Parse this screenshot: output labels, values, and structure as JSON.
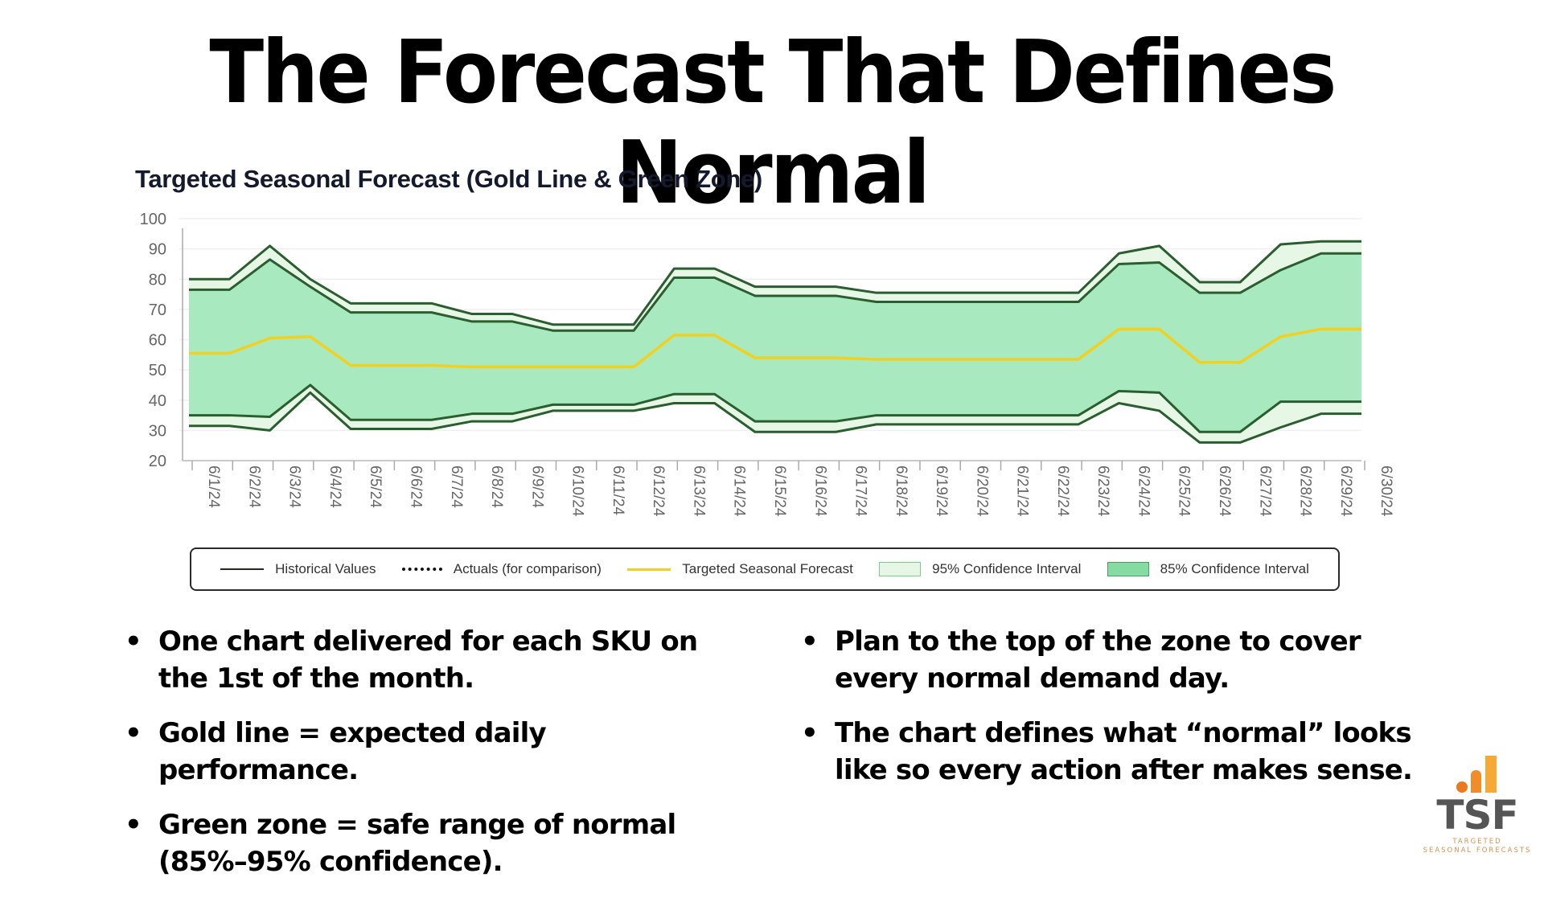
{
  "slide": {
    "title": "The Forecast That Defines Normal",
    "bullets_left": [
      "One chart delivered for each SKU on the 1st of the month.",
      "Gold line = expected daily performance.",
      "Green zone = safe range of normal (85%–95% confidence)."
    ],
    "bullets_right": [
      "Plan to the top of the zone to cover every normal demand day.",
      "The chart defines what “normal” looks like so every action after makes sense."
    ]
  },
  "logo": {
    "name": "TSF",
    "tagline_line1": "TARGETED",
    "tagline_line2": "SEASONAL FORECASTS",
    "colors": [
      "#ea7a22",
      "#f08c2a",
      "#f6a935"
    ]
  },
  "legend": {
    "items": [
      {
        "label": "Historical Values",
        "swatch": "line"
      },
      {
        "label": "Actuals (for comparison)",
        "swatch": "dots"
      },
      {
        "label": "Targeted Seasonal Forecast",
        "swatch": "gold"
      },
      {
        "label": "95% Confidence Interval",
        "swatch": "box95"
      },
      {
        "label": "85% Confidence Interval",
        "swatch": "box85"
      }
    ]
  },
  "colors": {
    "forecast": "#f2d01f",
    "ci95_fill": "#e7f7e6",
    "ci85_fill": "#a9e9bf",
    "boundary": "#2a5e2e",
    "grid": "#efefef",
    "axis_text": "#666666"
  },
  "chart_data": {
    "type": "area",
    "title": "Targeted Seasonal Forecast (Gold Line & Green Zone)",
    "xlabel": "",
    "ylabel": "",
    "ylim": [
      20,
      100
    ],
    "yticks": [
      20,
      30,
      40,
      50,
      60,
      70,
      80,
      90,
      100
    ],
    "grid": true,
    "legend_position": "bottom",
    "x": [
      "6/1/24",
      "6/2/24",
      "6/3/24",
      "6/4/24",
      "6/5/24",
      "6/6/24",
      "6/7/24",
      "6/8/24",
      "6/9/24",
      "6/10/24",
      "6/11/24",
      "6/12/24",
      "6/13/24",
      "6/14/24",
      "6/15/24",
      "6/16/24",
      "6/17/24",
      "6/18/24",
      "6/19/24",
      "6/20/24",
      "6/21/24",
      "6/22/24",
      "6/23/24",
      "6/24/24",
      "6/25/24",
      "6/26/24",
      "6/27/24",
      "6/28/24",
      "6/29/24",
      "6/30/24"
    ],
    "series": [
      {
        "name": "95% Confidence Interval Upper",
        "values": [
          80,
          80,
          91,
          80,
          72,
          72,
          72,
          68.5,
          68.5,
          65,
          65,
          65,
          83.5,
          83.5,
          77.5,
          77.5,
          77.5,
          75.5,
          75.5,
          75.5,
          75.5,
          75.5,
          75.5,
          88.5,
          91,
          79,
          79,
          91.5,
          92.5,
          92.5
        ]
      },
      {
        "name": "85% Confidence Interval Upper",
        "values": [
          76.5,
          76.5,
          86.5,
          77.5,
          69,
          69,
          69,
          66,
          66,
          63,
          63,
          63,
          80.5,
          80.5,
          74.5,
          74.5,
          74.5,
          72.5,
          72.5,
          72.5,
          72.5,
          72.5,
          72.5,
          85,
          85.5,
          75.5,
          75.5,
          83,
          88.5,
          88.5
        ]
      },
      {
        "name": "Targeted Seasonal Forecast",
        "values": [
          55.5,
          55.5,
          60.5,
          61,
          51.5,
          51.5,
          51.5,
          51,
          51,
          51,
          51,
          51,
          61.5,
          61.5,
          54,
          54,
          54,
          53.5,
          53.5,
          53.5,
          53.5,
          53.5,
          53.5,
          63.5,
          63.5,
          52.5,
          52.5,
          61,
          63.5,
          63.5
        ]
      },
      {
        "name": "85% Confidence Interval Lower",
        "values": [
          35,
          35,
          34.5,
          45,
          33.5,
          33.5,
          33.5,
          35.5,
          35.5,
          38.5,
          38.5,
          38.5,
          42,
          42,
          33,
          33,
          33,
          35,
          35,
          35,
          35,
          35,
          35,
          43,
          42.5,
          29.5,
          29.5,
          39.5,
          39.5,
          39.5
        ]
      },
      {
        "name": "95% Confidence Interval Lower",
        "values": [
          31.5,
          31.5,
          30,
          42.5,
          30.5,
          30.5,
          30.5,
          33,
          33,
          36.5,
          36.5,
          36.5,
          39,
          39,
          29.5,
          29.5,
          29.5,
          32,
          32,
          32,
          32,
          32,
          32,
          39,
          36.5,
          26,
          26,
          31,
          35.5,
          35.5
        ]
      }
    ]
  }
}
